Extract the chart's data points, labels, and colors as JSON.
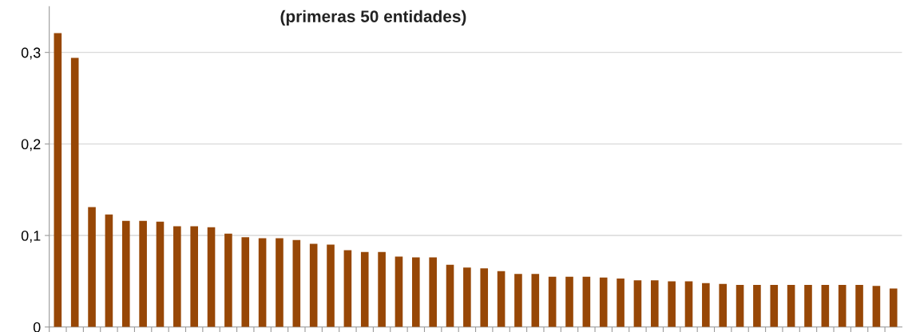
{
  "chart_data": {
    "type": "bar",
    "title": "(primeras 50 entidades)",
    "categories": [
      null,
      null,
      null,
      null,
      null,
      null,
      null,
      null,
      null,
      null,
      null,
      null,
      null,
      null,
      null,
      null,
      null,
      null,
      null,
      null,
      null,
      null,
      null,
      null,
      null,
      null,
      null,
      null,
      null,
      null,
      null,
      null,
      null,
      null,
      null,
      null,
      null,
      null,
      null,
      null,
      null,
      null,
      null,
      null,
      null,
      null,
      null,
      null,
      null,
      null
    ],
    "values": [
      0.321,
      0.294,
      0.131,
      0.123,
      0.116,
      0.116,
      0.115,
      0.11,
      0.11,
      0.109,
      0.102,
      0.098,
      0.097,
      0.097,
      0.095,
      0.091,
      0.09,
      0.084,
      0.082,
      0.082,
      0.077,
      0.076,
      0.076,
      0.068,
      0.065,
      0.064,
      0.061,
      0.058,
      0.058,
      0.055,
      0.055,
      0.055,
      0.054,
      0.053,
      0.051,
      0.051,
      0.05,
      0.05,
      0.048,
      0.047,
      0.046,
      0.046,
      0.046,
      0.046,
      0.046,
      0.046,
      0.046,
      0.046,
      0.045,
      0.042
    ],
    "color": "#974706",
    "ylim": [
      0,
      0.35
    ],
    "yticks": [
      0,
      {
        "value": 0.1,
        "label": "0,1"
      },
      {
        "value": 0.2,
        "label": "0,2"
      },
      {
        "value": 0.3,
        "label": "0,3"
      }
    ],
    "grid": "y"
  }
}
